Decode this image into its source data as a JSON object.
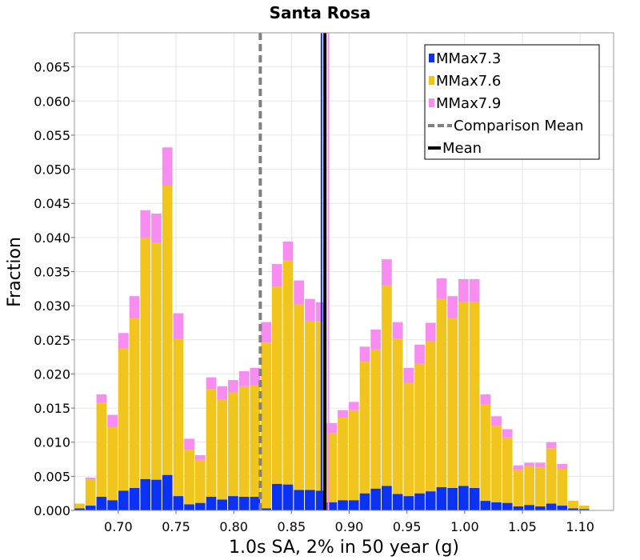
{
  "chart_data": {
    "type": "bar",
    "stacked": true,
    "title": "Santa Rosa",
    "xlabel": "1.0s SA, 2% in 50 year (g)",
    "ylabel": "Fraction",
    "xlim": [
      0.662,
      1.129
    ],
    "ylim": [
      0,
      0.07
    ],
    "xticks": [
      "0.70",
      "0.75",
      "0.80",
      "0.85",
      "0.90",
      "0.95",
      "1.00",
      "1.05",
      "1.10"
    ],
    "yticks": [
      "0.000",
      "0.005",
      "0.010",
      "0.015",
      "0.020",
      "0.025",
      "0.030",
      "0.035",
      "0.040",
      "0.045",
      "0.050",
      "0.055",
      "0.060",
      "0.065"
    ],
    "grid": true,
    "legend_position": "top-right",
    "bin_width": 0.0095,
    "bin_centers": [
      0.6665,
      0.676,
      0.6855,
      0.695,
      0.7045,
      0.714,
      0.7235,
      0.733,
      0.7425,
      0.752,
      0.7615,
      0.771,
      0.7805,
      0.79,
      0.7995,
      0.809,
      0.8185,
      0.828,
      0.8375,
      0.847,
      0.8565,
      0.866,
      0.8755,
      0.885,
      0.8945,
      0.904,
      0.9135,
      0.923,
      0.9325,
      0.942,
      0.9515,
      0.961,
      0.9705,
      0.98,
      0.9895,
      0.999,
      1.0085,
      1.018,
      1.0275,
      1.037,
      1.0465,
      1.056,
      1.0655,
      1.075,
      1.0845,
      1.094,
      1.1035,
      1.113
    ],
    "series": [
      {
        "name": "MMax7.3",
        "color": "#0a32f0",
        "values": [
          0.0003,
          0.0007,
          0.002,
          0.0015,
          0.0029,
          0.0033,
          0.0046,
          0.0045,
          0.0052,
          0.0021,
          0.0009,
          0.0011,
          0.002,
          0.0016,
          0.0021,
          0.002,
          0.002,
          0.0003,
          0.0039,
          0.0038,
          0.003,
          0.003,
          0.0029,
          0.0012,
          0.0015,
          0.0015,
          0.0025,
          0.0032,
          0.0036,
          0.0024,
          0.0021,
          0.0025,
          0.0028,
          0.0034,
          0.0033,
          0.0036,
          0.0033,
          0.0014,
          0.0012,
          0.0011,
          0.0006,
          0.0008,
          0.0006,
          0.001,
          0.0007,
          0.0003,
          0.0002,
          0.0
        ]
      },
      {
        "name": "MMax7.6",
        "color": "#f0c51e",
        "values": [
          0.0007,
          0.0038,
          0.0138,
          0.0107,
          0.0209,
          0.0249,
          0.0354,
          0.0347,
          0.0424,
          0.023,
          0.008,
          0.0063,
          0.0158,
          0.0146,
          0.0152,
          0.0162,
          0.0163,
          0.0243,
          0.0289,
          0.0329,
          0.0272,
          0.0248,
          0.0248,
          0.0101,
          0.0121,
          0.0132,
          0.0193,
          0.0204,
          0.0294,
          0.0228,
          0.0166,
          0.019,
          0.022,
          0.0276,
          0.0249,
          0.027,
          0.0272,
          0.0141,
          0.0112,
          0.0096,
          0.0053,
          0.0057,
          0.0057,
          0.0081,
          0.0054,
          0.0011,
          0.0005,
          0.0
        ]
      },
      {
        "name": "MMax7.9",
        "color": "#f78df0",
        "values": [
          0.0,
          0.0003,
          0.0012,
          0.0018,
          0.0022,
          0.0032,
          0.004,
          0.0043,
          0.0056,
          0.0038,
          0.0016,
          0.0007,
          0.0017,
          0.002,
          0.0018,
          0.0022,
          0.0026,
          0.003,
          0.0033,
          0.0027,
          0.0035,
          0.0032,
          0.0028,
          0.0015,
          0.0011,
          0.0012,
          0.0022,
          0.0029,
          0.0038,
          0.0024,
          0.0022,
          0.0028,
          0.0027,
          0.003,
          0.0032,
          0.0033,
          0.0034,
          0.0015,
          0.0014,
          0.0012,
          0.0007,
          0.0005,
          0.0007,
          0.0009,
          0.0007,
          0.0,
          0.0,
          0.0
        ]
      }
    ],
    "reference_lines": [
      {
        "name": "Comparison Mean",
        "x": 0.823,
        "color": "#808080",
        "style": "dashed"
      },
      {
        "name": "Mean",
        "x": 0.879,
        "color": "#000000",
        "style": "solid"
      }
    ],
    "marker_lines": [
      {
        "series": "MMax7.3",
        "x": 0.876,
        "color": "#0a32f0"
      },
      {
        "series": "MMax7.9",
        "x": 0.882,
        "color": "#f78df0"
      }
    ],
    "legend": [
      {
        "label": "MMax7.3",
        "kind": "swatch",
        "color": "#0a32f0"
      },
      {
        "label": "MMax7.6",
        "kind": "swatch",
        "color": "#f0c51e"
      },
      {
        "label": "MMax7.9",
        "kind": "swatch",
        "color": "#f78df0"
      },
      {
        "label": "Comparison Mean",
        "kind": "dashed-line",
        "color": "#808080"
      },
      {
        "label": "Mean",
        "kind": "solid-line",
        "color": "#000000"
      }
    ]
  }
}
